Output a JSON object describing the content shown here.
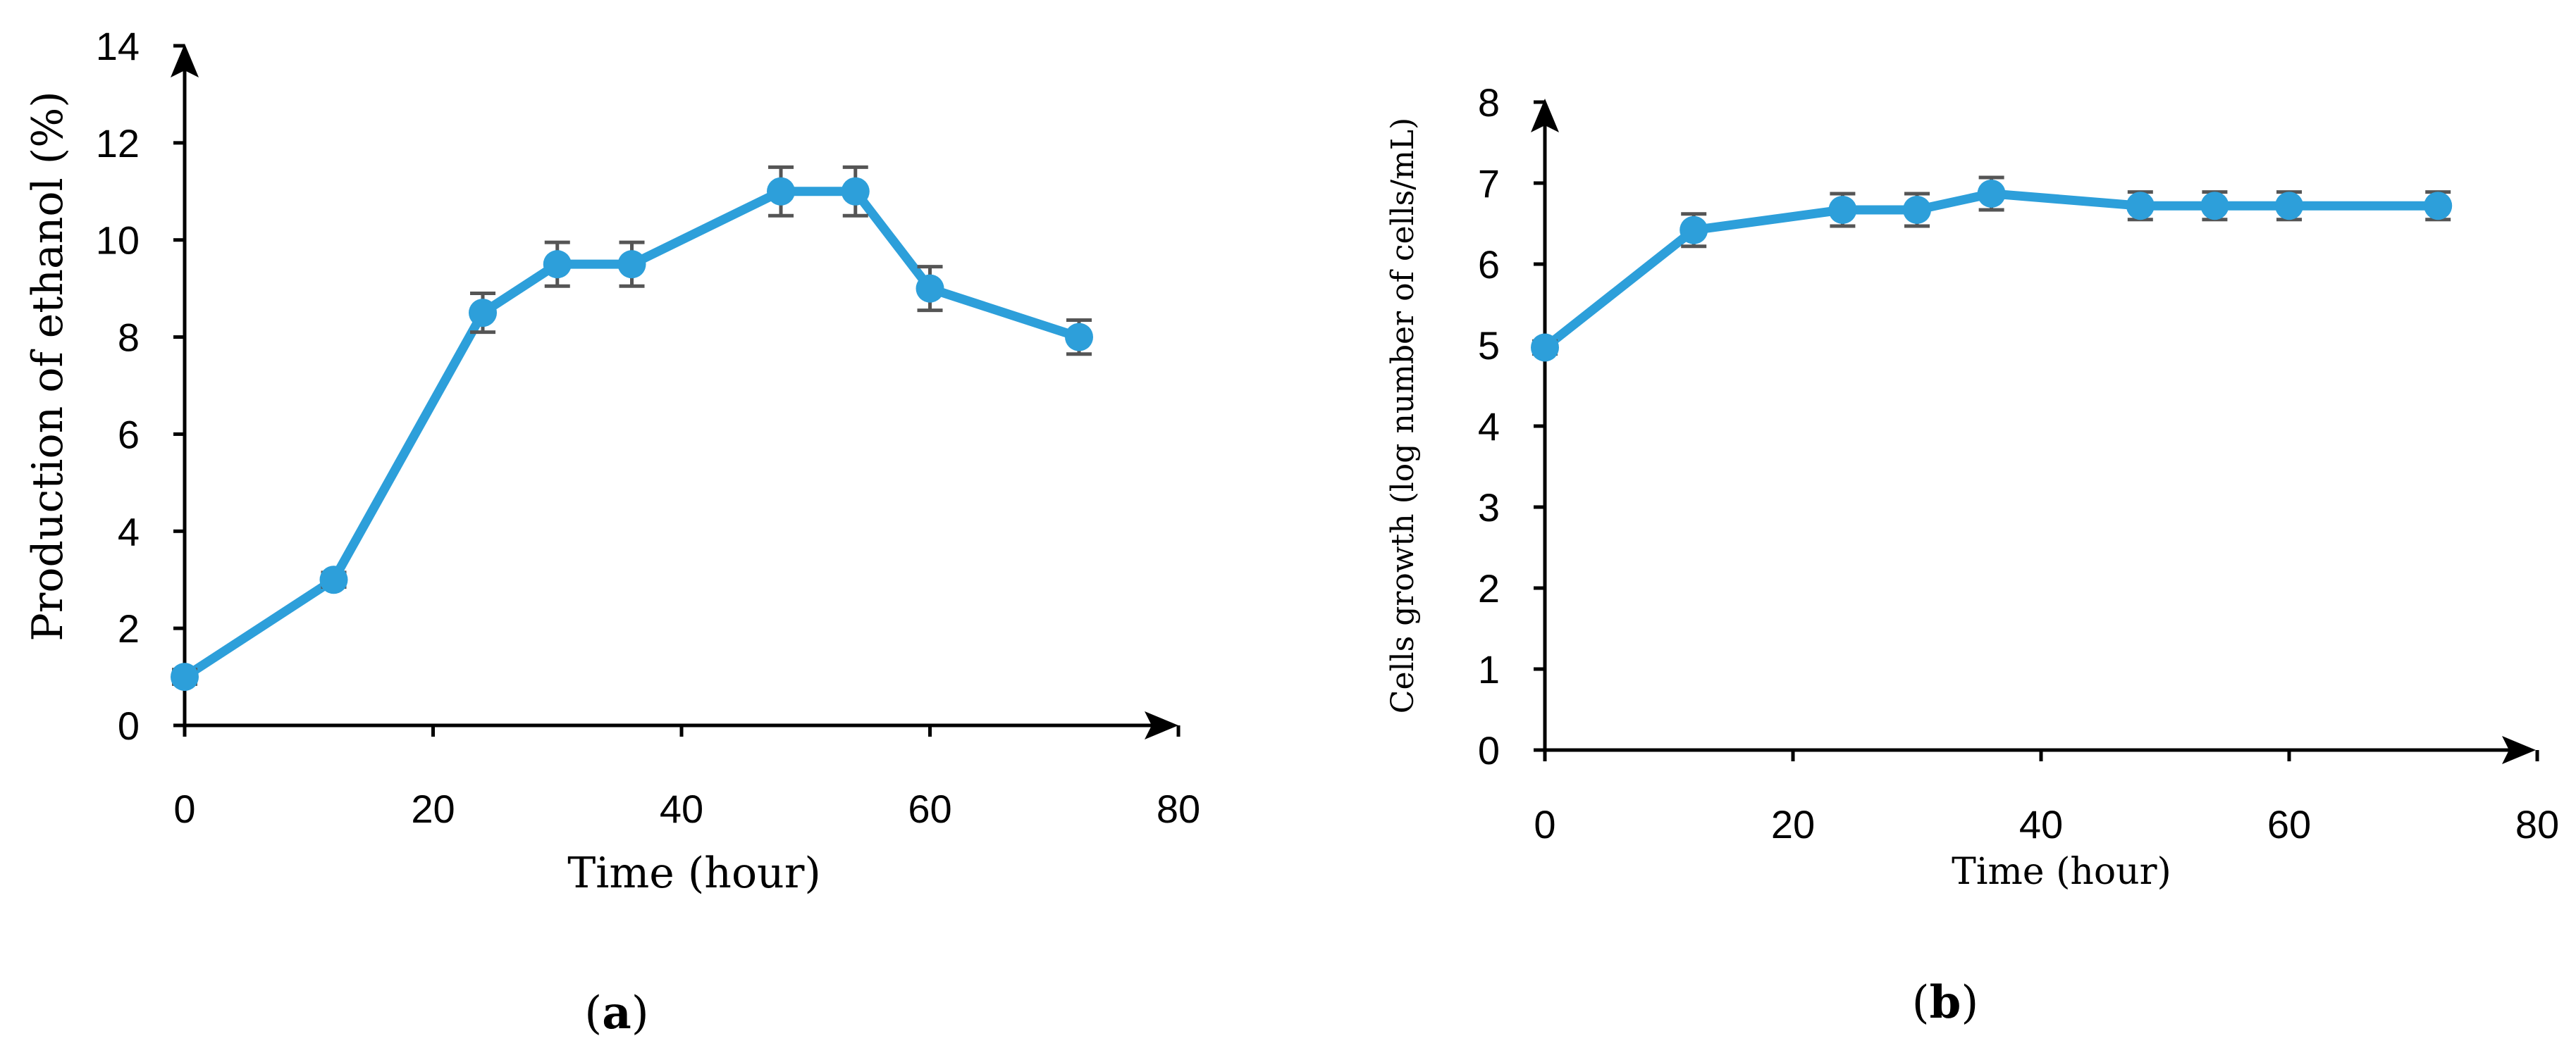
{
  "colors": {
    "series": "#2d9fda",
    "errorbar": "#555555",
    "axis": "#000000"
  },
  "chart_data": [
    {
      "type": "line",
      "panel": "a",
      "caption_letter": "a",
      "xlabel": "Time (hour)",
      "ylabel": "Production of ethanol (%)",
      "xlim": [
        0,
        80
      ],
      "ylim": [
        0,
        14
      ],
      "xticks": [
        0,
        20,
        40,
        60,
        80
      ],
      "yticks": [
        0,
        2,
        4,
        6,
        8,
        10,
        12,
        14
      ],
      "grid": false,
      "series": [
        {
          "name": "ethanol",
          "x": [
            0,
            12,
            24,
            30,
            36,
            48,
            54,
            60,
            72
          ],
          "y": [
            1.0,
            3.0,
            8.5,
            9.5,
            9.5,
            11.0,
            11.0,
            9.0,
            8.0
          ],
          "err": [
            0.15,
            0.15,
            0.4,
            0.45,
            0.45,
            0.5,
            0.5,
            0.45,
            0.35
          ]
        }
      ]
    },
    {
      "type": "line",
      "panel": "b",
      "caption_letter": "b",
      "xlabel": "Time (hour)",
      "ylabel": "Cells growth (log number of cells/mL)",
      "xlim": [
        0,
        80
      ],
      "ylim": [
        0,
        8
      ],
      "xticks": [
        0,
        20,
        40,
        60,
        80
      ],
      "yticks": [
        0,
        1,
        2,
        3,
        4,
        5,
        6,
        7,
        8
      ],
      "grid": false,
      "series": [
        {
          "name": "cells",
          "x": [
            0,
            12,
            24,
            30,
            36,
            48,
            54,
            60,
            72
          ],
          "y": [
            4.97,
            6.42,
            6.67,
            6.67,
            6.87,
            6.72,
            6.72,
            6.72,
            6.72
          ],
          "err": [
            0.08,
            0.2,
            0.2,
            0.2,
            0.2,
            0.17,
            0.17,
            0.17,
            0.17
          ]
        }
      ]
    }
  ]
}
